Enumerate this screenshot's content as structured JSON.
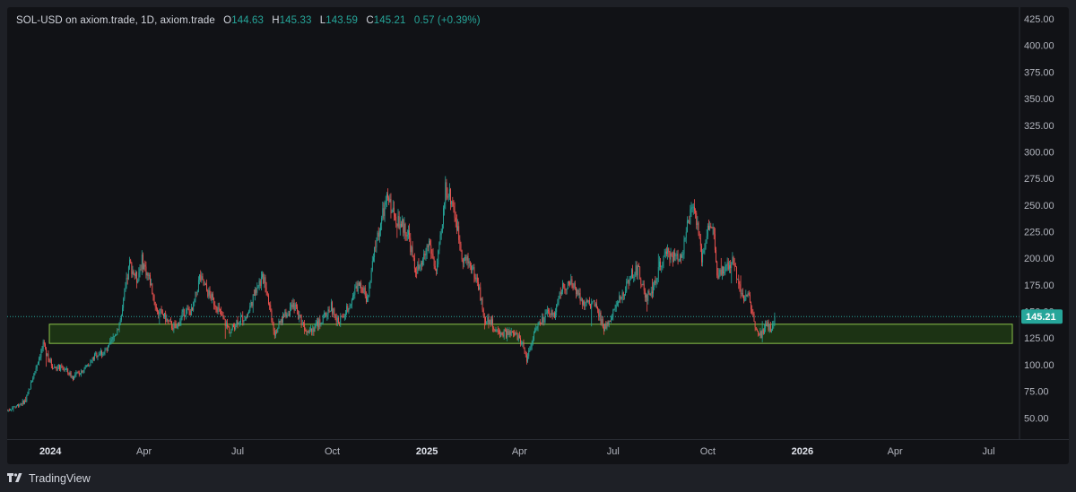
{
  "legend": {
    "symbol": "SOL-USD on axiom.trade, 1D, axiom.trade",
    "open_label": "O",
    "open": "144.63",
    "high_label": "H",
    "high": "145.33",
    "low_label": "L",
    "low": "143.59",
    "close_label": "C",
    "close": "145.21",
    "change": "0.57 (+0.39%)"
  },
  "brand": {
    "name": "TradingView"
  },
  "colors": {
    "background": "#111216",
    "up": "#26a69a",
    "down": "#ef5350",
    "zone_fill": "#1f3a14",
    "zone_stroke": "#8bc34a",
    "price_tag": "#26a69a"
  },
  "chart_data": {
    "type": "candlestick",
    "title": "SOL-USD on axiom.trade, 1D, axiom.trade",
    "timeframe": "1D",
    "grid": false,
    "y_axis": {
      "position": "right",
      "ylim": [
        30,
        436
      ],
      "ticks": [
        50,
        75,
        100,
        125,
        150,
        175,
        200,
        225,
        250,
        275,
        300,
        325,
        350,
        375,
        400,
        425
      ],
      "tick_labels": [
        "50.00",
        "75.00",
        "100.00",
        "125.00",
        "150.00",
        "175.00",
        "200.00",
        "225.00",
        "250.00",
        "275.00",
        "300.00",
        "325.00",
        "350.00",
        "375.00",
        "400.00",
        "425.00"
      ]
    },
    "x_axis": {
      "range": [
        "2023-11-20",
        "2026-07-31"
      ],
      "ticks": [
        {
          "date": "2024-01-01",
          "label": "2024",
          "bold": true
        },
        {
          "date": "2024-04-01",
          "label": "Apr"
        },
        {
          "date": "2024-07-01",
          "label": "Jul"
        },
        {
          "date": "2024-10-01",
          "label": "Oct"
        },
        {
          "date": "2025-01-01",
          "label": "2025",
          "bold": true
        },
        {
          "date": "2025-04-01",
          "label": "Apr"
        },
        {
          "date": "2025-07-01",
          "label": "Jul"
        },
        {
          "date": "2025-10-01",
          "label": "Oct"
        },
        {
          "date": "2026-01-01",
          "label": "2026",
          "bold": true
        },
        {
          "date": "2026-04-01",
          "label": "Apr"
        },
        {
          "date": "2026-07-01",
          "label": "Jul"
        }
      ]
    },
    "last_price": {
      "value": 145.21,
      "label": "145.21"
    },
    "support_zone": {
      "from": 120,
      "to": 138,
      "start": "2023-12-31",
      "end": "2026-08-31"
    },
    "close_path": [
      [
        "2023-11-20",
        57
      ],
      [
        "2023-12-08",
        66
      ],
      [
        "2023-12-20",
        104
      ],
      [
        "2023-12-25",
        118
      ],
      [
        "2024-01-03",
        98
      ],
      [
        "2024-01-15",
        96
      ],
      [
        "2024-01-23",
        88
      ],
      [
        "2024-02-05",
        98
      ],
      [
        "2024-02-15",
        110
      ],
      [
        "2024-02-25",
        113
      ],
      [
        "2024-03-05",
        130
      ],
      [
        "2024-03-10",
        146
      ],
      [
        "2024-03-18",
        195
      ],
      [
        "2024-03-25",
        180
      ],
      [
        "2024-03-30",
        198
      ],
      [
        "2024-04-07",
        178
      ],
      [
        "2024-04-13",
        152
      ],
      [
        "2024-04-20",
        146
      ],
      [
        "2024-04-26",
        138
      ],
      [
        "2024-05-02",
        134
      ],
      [
        "2024-05-10",
        150
      ],
      [
        "2024-05-18",
        150
      ],
      [
        "2024-05-25",
        182
      ],
      [
        "2024-06-02",
        168
      ],
      [
        "2024-06-10",
        156
      ],
      [
        "2024-06-18",
        140
      ],
      [
        "2024-06-24",
        131
      ],
      [
        "2024-07-01",
        142
      ],
      [
        "2024-07-10",
        145
      ],
      [
        "2024-07-20",
        175
      ],
      [
        "2024-07-27",
        182
      ],
      [
        "2024-08-02",
        150
      ],
      [
        "2024-08-06",
        130
      ],
      [
        "2024-08-15",
        146
      ],
      [
        "2024-08-25",
        155
      ],
      [
        "2024-09-05",
        134
      ],
      [
        "2024-09-12",
        134
      ],
      [
        "2024-09-22",
        143
      ],
      [
        "2024-09-30",
        155
      ],
      [
        "2024-10-05",
        140
      ],
      [
        "2024-10-12",
        145
      ],
      [
        "2024-10-20",
        163
      ],
      [
        "2024-10-28",
        178
      ],
      [
        "2024-11-04",
        160
      ],
      [
        "2024-11-12",
        213
      ],
      [
        "2024-11-20",
        244
      ],
      [
        "2024-11-24",
        257
      ],
      [
        "2024-11-30",
        240
      ],
      [
        "2024-12-07",
        232
      ],
      [
        "2024-12-14",
        223
      ],
      [
        "2024-12-20",
        190
      ],
      [
        "2024-12-26",
        190
      ],
      [
        "2025-01-03",
        215
      ],
      [
        "2025-01-10",
        187
      ],
      [
        "2025-01-16",
        230
      ],
      [
        "2025-01-19",
        268
      ],
      [
        "2025-01-26",
        252
      ],
      [
        "2025-02-01",
        220
      ],
      [
        "2025-02-05",
        200
      ],
      [
        "2025-02-12",
        195
      ],
      [
        "2025-02-20",
        175
      ],
      [
        "2025-02-26",
        142
      ],
      [
        "2025-03-03",
        142
      ],
      [
        "2025-03-10",
        130
      ],
      [
        "2025-03-20",
        129
      ],
      [
        "2025-03-28",
        128
      ],
      [
        "2025-04-04",
        120
      ],
      [
        "2025-04-08",
        105
      ],
      [
        "2025-04-15",
        130
      ],
      [
        "2025-04-22",
        140
      ],
      [
        "2025-04-29",
        148
      ],
      [
        "2025-05-05",
        148
      ],
      [
        "2025-05-12",
        172
      ],
      [
        "2025-05-20",
        176
      ],
      [
        "2025-05-27",
        170
      ],
      [
        "2025-06-04",
        156
      ],
      [
        "2025-06-12",
        157
      ],
      [
        "2025-06-18",
        145
      ],
      [
        "2025-06-22",
        133
      ],
      [
        "2025-07-01",
        150
      ],
      [
        "2025-07-10",
        165
      ],
      [
        "2025-07-18",
        185
      ],
      [
        "2025-07-25",
        190
      ],
      [
        "2025-08-02",
        162
      ],
      [
        "2025-08-10",
        175
      ],
      [
        "2025-08-16",
        195
      ],
      [
        "2025-08-24",
        205
      ],
      [
        "2025-08-31",
        200
      ],
      [
        "2025-09-06",
        205
      ],
      [
        "2025-09-13",
        238
      ],
      [
        "2025-09-18",
        248
      ],
      [
        "2025-09-25",
        200
      ],
      [
        "2025-10-01",
        230
      ],
      [
        "2025-10-07",
        225
      ],
      [
        "2025-10-10",
        180
      ],
      [
        "2025-10-18",
        190
      ],
      [
        "2025-10-26",
        198
      ],
      [
        "2025-11-04",
        162
      ],
      [
        "2025-11-10",
        165
      ],
      [
        "2025-11-15",
        140
      ],
      [
        "2025-11-22",
        128
      ],
      [
        "2025-11-27",
        140
      ],
      [
        "2025-12-02",
        130
      ],
      [
        "2025-12-05",
        145.21
      ]
    ]
  }
}
